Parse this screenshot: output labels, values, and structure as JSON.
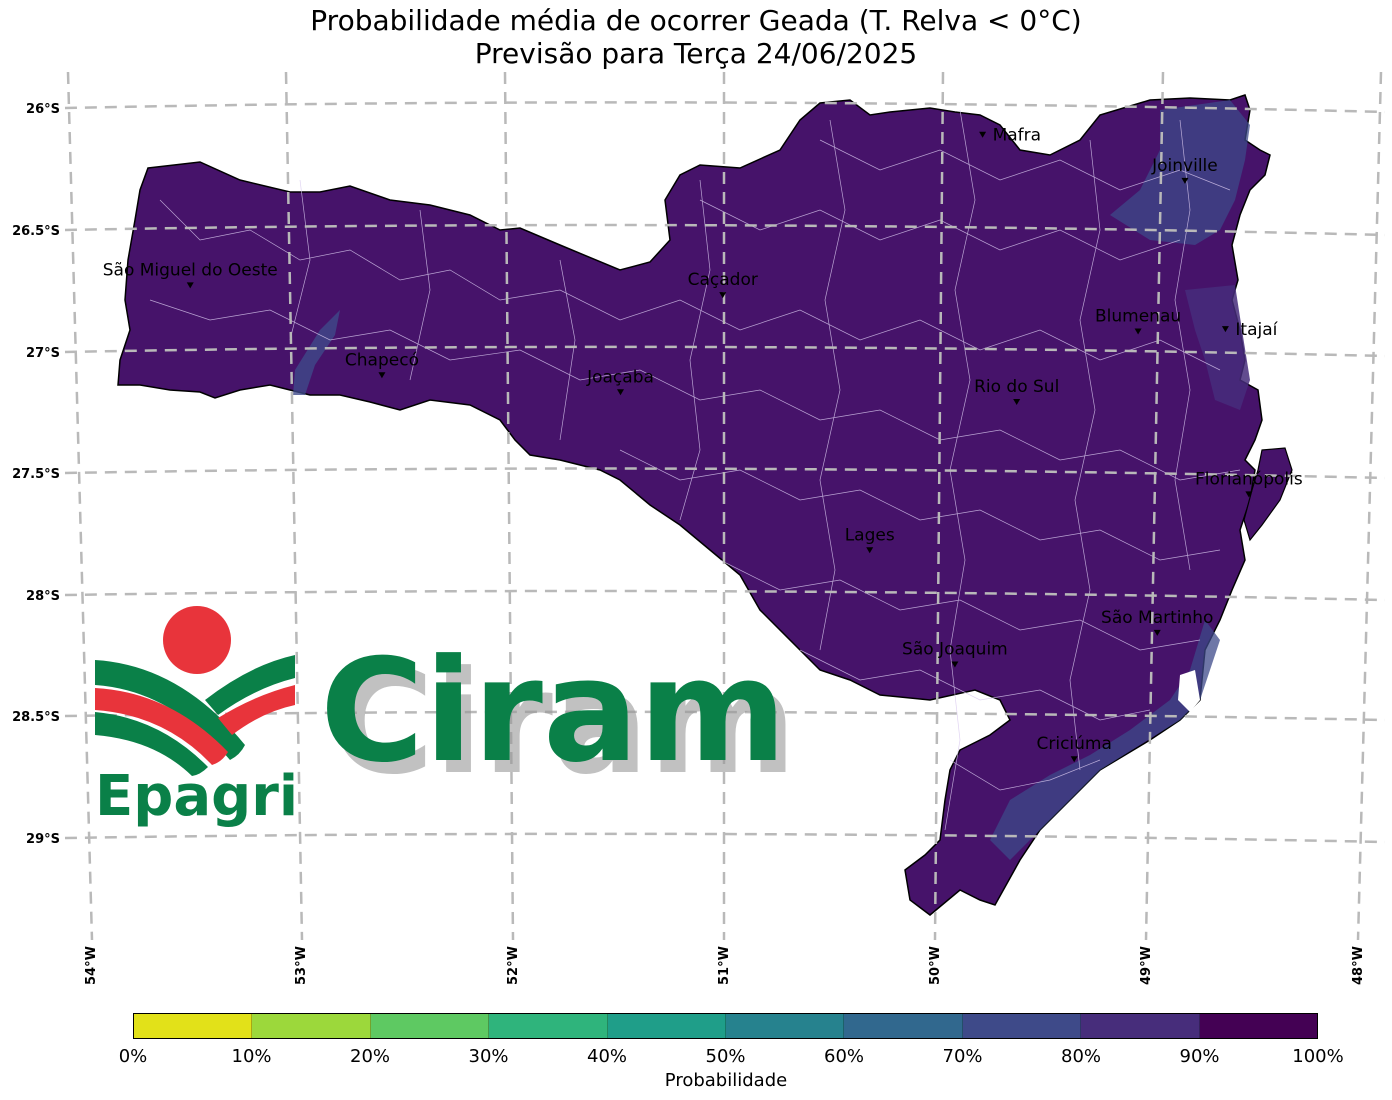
{
  "title_line1": "Probabilidade média de ocorrer Geada (T. Relva < 0°C)",
  "title_line2": "Previsão para Terça 24/06/2025",
  "lat_labels": [
    "26°S",
    "26.5°S",
    "27°S",
    "27.5°S",
    "28°S",
    "28.5°S",
    "29°S"
  ],
  "lon_labels": [
    "54°W",
    "53°W",
    "52°W",
    "51°W",
    "50°W",
    "49°W",
    "48°W"
  ],
  "cities": [
    {
      "name": "Mafra",
      "lon": -49.8,
      "lat": -26.11
    },
    {
      "name": "Joinville",
      "lon": -48.85,
      "lat": -26.3
    },
    {
      "name": "São Miguel do Oeste",
      "lon": -53.52,
      "lat": -26.73
    },
    {
      "name": "Caçador",
      "lon": -51.02,
      "lat": -26.77
    },
    {
      "name": "Blumenau",
      "lon": -49.07,
      "lat": -26.92
    },
    {
      "name": "Itajaí",
      "lon": -48.66,
      "lat": -26.91
    },
    {
      "name": "Chapecó",
      "lon": -52.62,
      "lat": -27.1
    },
    {
      "name": "Joaçaba",
      "lon": -51.5,
      "lat": -27.17
    },
    {
      "name": "Rio do Sul",
      "lon": -49.64,
      "lat": -27.21
    },
    {
      "name": "Florianópolis",
      "lon": -48.55,
      "lat": -27.59
    },
    {
      "name": "Lages",
      "lon": -50.33,
      "lat": -27.82
    },
    {
      "name": "São Martinho",
      "lon": -48.98,
      "lat": -28.16
    },
    {
      "name": "São Joaquim",
      "lon": -49.93,
      "lat": -28.29
    },
    {
      "name": "Criciúma",
      "lon": -49.37,
      "lat": -28.68
    }
  ],
  "colorbar": {
    "label": "Probabilidade",
    "ticks": [
      "0%",
      "10%",
      "20%",
      "30%",
      "40%",
      "50%",
      "60%",
      "70%",
      "80%",
      "90%",
      "100%"
    ],
    "colors": [
      "#e2e119",
      "#9cd83b",
      "#5ec962",
      "#2fb47c",
      "#1f9e89",
      "#26828e",
      "#31688e",
      "#3e4a89",
      "#472d7b",
      "#440154"
    ]
  },
  "state_fill": "#46136a",
  "logo": {
    "brand1": "Epagri",
    "brand2": "Ciram",
    "green": "#0a8048",
    "red": "#e8343b"
  }
}
